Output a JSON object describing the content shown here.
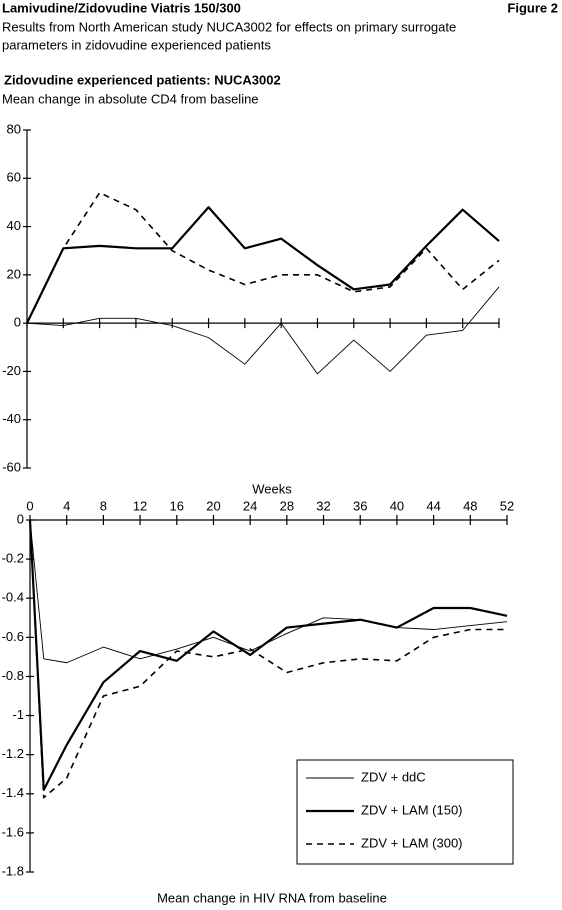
{
  "header": {
    "title": "Lamivudine/Zidovudine Viatris 150/300",
    "figure": "Figure 2",
    "subtitle": [
      "Results from North American study NUCA3002 for effects on primary surrogate",
      "parameters in zidovudine experienced patients"
    ]
  },
  "chart_data": [
    {
      "type": "line",
      "title": "Zidovudine experienced patients: NUCA3002",
      "subtitle": "Mean change in absolute CD4 from baseline",
      "x": [
        0,
        4,
        8,
        12,
        16,
        20,
        24,
        28,
        32,
        36,
        40,
        44,
        48,
        52
      ],
      "xlim": [
        0,
        52
      ],
      "xticks": [
        0,
        4,
        8,
        12,
        16,
        20,
        24,
        28,
        32,
        36,
        40,
        44,
        48,
        52
      ],
      "ylim": [
        -60,
        80
      ],
      "yticks": [
        80,
        60,
        40,
        20,
        0,
        -20,
        -40,
        -60
      ],
      "series": [
        {
          "color": "#000000",
          "line_style": "thin",
          "values": [
            0,
            -1,
            2,
            2,
            -1,
            -6,
            -17,
            0,
            -21,
            -7,
            -20,
            -5,
            -3,
            15
          ]
        },
        {
          "color": "#000000",
          "line_style": "thick",
          "values": [
            0,
            31,
            32,
            31,
            31,
            48,
            31,
            35,
            24,
            14,
            16,
            32,
            47,
            34
          ]
        },
        {
          "color": "#000000",
          "line_style": "dashed",
          "values": [
            0,
            31,
            54,
            47,
            30,
            22,
            16,
            20,
            20,
            13,
            15,
            31,
            14,
            26
          ]
        }
      ]
    },
    {
      "type": "line",
      "xlabel": "Weeks",
      "ylabel": "Mean change in HIV RNA from baseline",
      "x": [
        0,
        1.5,
        4,
        8,
        12,
        16,
        20,
        24,
        28,
        32,
        36,
        40,
        44,
        48,
        52
      ],
      "xlim": [
        0,
        52
      ],
      "xticks": [
        0,
        4,
        8,
        12,
        16,
        20,
        24,
        28,
        32,
        36,
        40,
        44,
        48,
        52
      ],
      "ylim": [
        -1.8,
        0
      ],
      "yticks": [
        0,
        -0.2,
        -0.4,
        -0.6,
        -0.8,
        -1,
        -1.2,
        -1.4,
        -1.6,
        -1.8
      ],
      "legend": "lower right",
      "series": [
        {
          "name": "ZDV + ddC",
          "color": "#000000",
          "line_style": "thin",
          "values": [
            0,
            -0.71,
            -0.73,
            -0.65,
            -0.71,
            -0.66,
            -0.6,
            -0.67,
            -0.58,
            -0.5,
            -0.51,
            -0.55,
            -0.56,
            -0.54,
            -0.52
          ]
        },
        {
          "name": "ZDV + LAM (150)",
          "color": "#000000",
          "line_style": "thick",
          "values": [
            0,
            -1.38,
            -1.15,
            -0.83,
            -0.67,
            -0.72,
            -0.57,
            -0.69,
            -0.55,
            -0.53,
            -0.51,
            -0.55,
            -0.45,
            -0.45,
            -0.49
          ]
        },
        {
          "name": "ZDV + LAM (300)",
          "color": "#000000",
          "line_style": "dashed",
          "values": [
            0,
            -1.42,
            -1.32,
            -0.9,
            -0.85,
            -0.67,
            -0.7,
            -0.66,
            -0.78,
            -0.73,
            -0.71,
            -0.72,
            -0.6,
            -0.56,
            -0.56
          ]
        }
      ]
    }
  ]
}
